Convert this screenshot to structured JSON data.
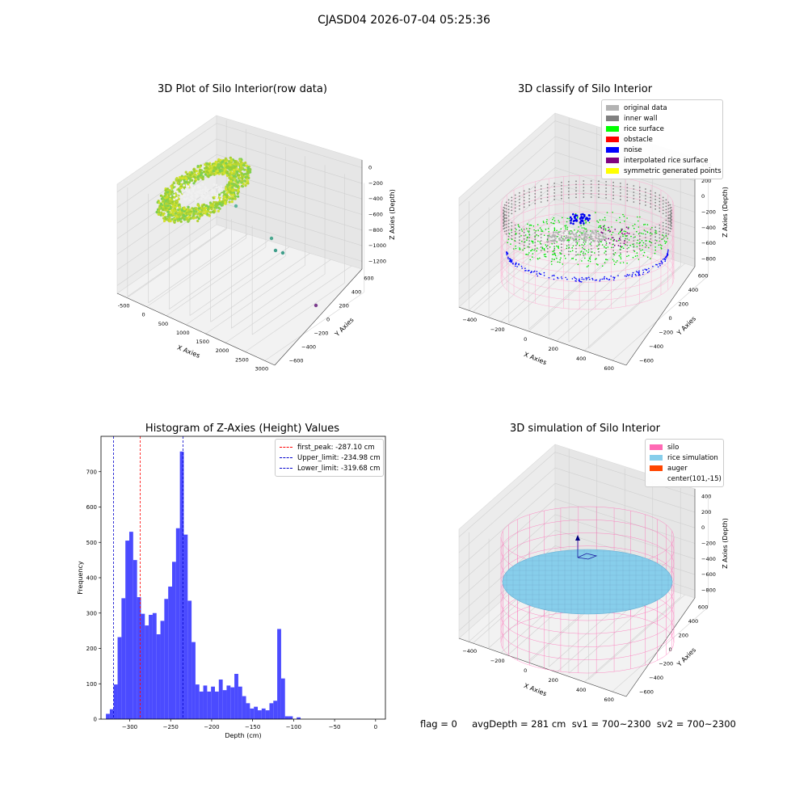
{
  "figure": {
    "suptitle": "CJASD04 2026-07-04 05:25:36",
    "status_text": "flag = 0     avgDepth = 281 cm  sv1 = 700~2300  sv2 = 700~2300"
  },
  "panels": {
    "raw": {
      "title": "3D Plot of Silo Interior(row data)",
      "xlabel": "X Axies",
      "ylabel": "Y Axies",
      "zlabel": "Z Axies (Depth)",
      "xticks": [
        "-500",
        "0",
        "500",
        "1000",
        "1500",
        "2000",
        "2500",
        "3000"
      ],
      "yticks": [
        "600",
        "400",
        "200",
        "0",
        "−200",
        "−400",
        "−600"
      ],
      "zticks": [
        "0",
        "−200",
        "−400",
        "−600",
        "−800",
        "−1000",
        "−1200"
      ]
    },
    "classify": {
      "title": "3D classify of Silo Interior",
      "xlabel": "X Axies",
      "ylabel": "Y Axies",
      "zlabel": "Z Axies (Depth)",
      "xticks": [
        "−400",
        "−200",
        "0",
        "200",
        "400",
        "600"
      ],
      "yticks": [
        "600",
        "400",
        "200",
        "0",
        "−200",
        "−400",
        "−600"
      ],
      "zticks": [
        "400",
        "200",
        "0",
        "−200",
        "−400",
        "−600",
        "−800"
      ],
      "legend": [
        {
          "label": "original data",
          "color": "#b3b3b3"
        },
        {
          "label": "inner wall",
          "color": "#808080"
        },
        {
          "label": "rice surface",
          "color": "#00ff00"
        },
        {
          "label": "obstacle",
          "color": "#ff0000"
        },
        {
          "label": "noise",
          "color": "#0000ff"
        },
        {
          "label": "interpolated rice surface",
          "color": "#800080"
        },
        {
          "label": "symmetric generated points",
          "color": "#ffff00"
        }
      ]
    },
    "histogram": {
      "title": "Histogram of Z-Axies (Height) Values",
      "xlabel": "Depth (cm)",
      "ylabel": "Frequency",
      "legend": [
        {
          "label": "first_peak: -287.10 cm",
          "color": "#ff0000"
        },
        {
          "label": "Upper_limit: -234.98 cm",
          "color": "#0000cc"
        },
        {
          "label": "Lower_limit: -319.68 cm",
          "color": "#0000cc"
        }
      ]
    },
    "simulation": {
      "title": "3D simulation of Silo Interior",
      "xlabel": "X Axies",
      "ylabel": "Y Axies",
      "zlabel": "Z Axies (Depth)",
      "xticks": [
        "−400",
        "−200",
        "0",
        "200",
        "400",
        "600"
      ],
      "yticks": [
        "600",
        "400",
        "200",
        "0",
        "−200",
        "−400",
        "−600"
      ],
      "zticks": [
        "400",
        "200",
        "0",
        "−200",
        "−400",
        "−600",
        "−800"
      ],
      "legend": [
        {
          "label": "silo",
          "color": "#ff69b4"
        },
        {
          "label": "rice simulation",
          "color": "#87ceeb"
        },
        {
          "label": "auger",
          "color": "#ff4500"
        },
        {
          "label": "center(101,-15)",
          "color": ""
        }
      ]
    }
  },
  "chart_data": [
    {
      "type": "scatter",
      "title": "3D Plot of Silo Interior(row data)",
      "xlabel": "X Axies",
      "ylabel": "Y Axies",
      "zlabel": "Z Axies (Depth)",
      "xlim": [
        -600,
        3000
      ],
      "ylim": [
        -600,
        600
      ],
      "zlim": [
        -1300,
        0
      ]
    },
    {
      "type": "scatter",
      "title": "3D classify of Silo Interior",
      "xlabel": "X Axies",
      "ylabel": "Y Axies",
      "zlabel": "Z Axies (Depth)",
      "series": [
        {
          "name": "original data"
        },
        {
          "name": "inner wall"
        },
        {
          "name": "rice surface"
        },
        {
          "name": "obstacle"
        },
        {
          "name": "noise"
        },
        {
          "name": "interpolated rice surface"
        },
        {
          "name": "symmetric generated points"
        }
      ],
      "legend_position": "upper right"
    },
    {
      "type": "bar",
      "title": "Histogram of Z-Axies (Height) Values",
      "xlabel": "Depth (cm)",
      "ylabel": "Frequency",
      "xlim": [
        -335,
        12
      ],
      "ylim": [
        0,
        800
      ],
      "xticks": [
        -300,
        -250,
        -200,
        -150,
        -100,
        -50,
        0
      ],
      "yticks": [
        0,
        100,
        200,
        300,
        400,
        500,
        600,
        700
      ],
      "bin_start": -329,
      "bin_width": 4.75,
      "values": [
        15,
        28,
        98,
        232,
        342,
        505,
        530,
        450,
        345,
        298,
        265,
        295,
        300,
        240,
        278,
        340,
        375,
        445,
        540,
        757,
        522,
        335,
        218,
        98,
        78,
        95,
        78,
        92,
        78,
        112,
        82,
        95,
        90,
        128,
        92,
        65,
        45,
        30,
        35,
        25,
        30,
        25,
        45,
        52,
        255,
        115,
        8,
        8,
        0,
        5,
        0
      ],
      "vlines": [
        {
          "label": "first_peak: -287.10 cm",
          "x": -287.1,
          "color": "#ff0000"
        },
        {
          "label": "Upper_limit: -234.98 cm",
          "x": -234.98,
          "color": "#0000cc"
        },
        {
          "label": "Lower_limit: -319.68 cm",
          "x": -319.68,
          "color": "#0000cc"
        }
      ],
      "bar_color": "#4b4bff",
      "legend_position": "upper right"
    },
    {
      "type": "scatter",
      "title": "3D simulation of Silo Interior",
      "xlabel": "X Axies",
      "ylabel": "Y Axies",
      "zlabel": "Z Axies (Depth)",
      "series": [
        {
          "name": "silo"
        },
        {
          "name": "rice simulation"
        },
        {
          "name": "auger"
        },
        {
          "name": "center(101,-15)"
        }
      ],
      "legend_position": "upper right"
    }
  ]
}
